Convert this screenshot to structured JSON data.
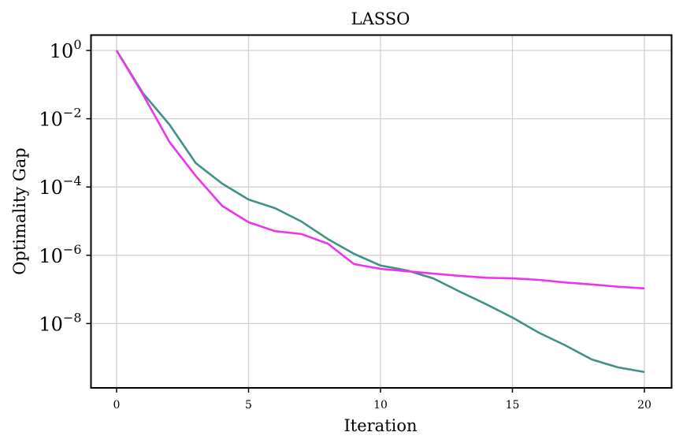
{
  "chart_data": {
    "type": "line",
    "title": "LASSO",
    "xlabel": "Iteration",
    "ylabel": "Optimality Gap",
    "yscale": "log",
    "xlim": [
      -1,
      20.5
    ],
    "ylim_log10": [
      -9.88,
      0.44
    ],
    "grid": true,
    "legend": null,
    "x_ticks": [
      0,
      5,
      10,
      15,
      20
    ],
    "y_ticks": [
      {
        "exp": 0,
        "base": "10",
        "sup": "0"
      },
      {
        "exp": -2,
        "base": "10",
        "sup": "−2"
      },
      {
        "exp": -4,
        "base": "10",
        "sup": "−4"
      },
      {
        "exp": -6,
        "base": "10",
        "sup": "−6"
      },
      {
        "exp": -8,
        "base": "10",
        "sup": "−8"
      }
    ],
    "x": [
      0,
      1,
      2,
      3,
      4,
      5,
      6,
      7,
      8,
      9,
      10,
      11,
      12,
      13,
      14,
      15,
      16,
      17,
      18,
      19,
      20
    ],
    "series": [
      {
        "name": "teal series",
        "color": "#3F9188",
        "values": [
          1.0,
          0.056,
          0.0068,
          0.0005,
          0.000126,
          4.3e-05,
          2.4e-05,
          9.8e-06,
          3e-06,
          1.1e-06,
          5e-07,
          3.6e-07,
          2.1e-07,
          8.6e-08,
          3.7e-08,
          1.5e-08,
          5.4e-09,
          2.3e-09,
          8.9e-10,
          5.2e-10,
          3.8e-10
        ]
      },
      {
        "name": "magenta series",
        "color": "#EE33EE",
        "values": [
          1.0,
          0.051,
          0.0021,
          0.00021,
          2.8e-05,
          9.3e-06,
          5.1e-06,
          4.2e-06,
          2.2e-06,
          5.5e-07,
          4e-07,
          3.4e-07,
          2.9e-07,
          2.5e-07,
          2.2e-07,
          2.1e-07,
          1.9e-07,
          1.6e-07,
          1.4e-07,
          1.2e-07,
          1.07e-07
        ]
      }
    ]
  }
}
